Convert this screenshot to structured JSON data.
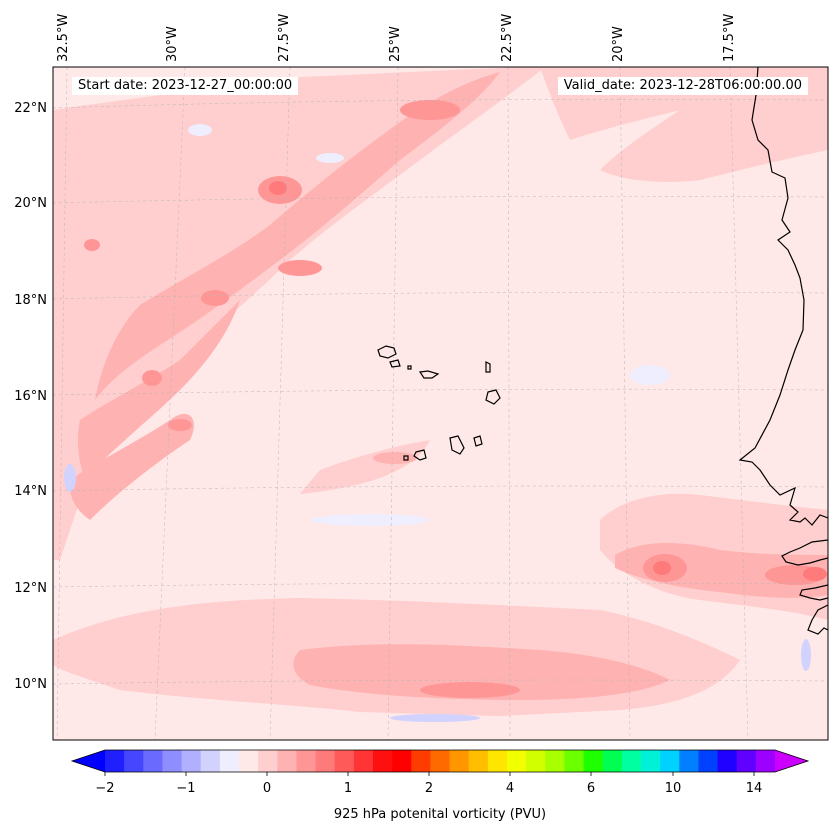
{
  "map": {
    "info_left": "Start date: 2023-12-27_00:00:00",
    "info_right": "Valid_date: 2023-12-28T06:00:00.00",
    "lon_labels": [
      "32.5°W",
      "30°W",
      "27.5°W",
      "25°W",
      "22.5°W",
      "20°W",
      "17.5°W"
    ],
    "lat_labels": [
      "22°N",
      "20°N",
      "18°N",
      "16°N",
      "14°N",
      "12°N",
      "10°N"
    ],
    "extent": {
      "lon_min": -32.8,
      "lon_max": -15.6,
      "lat_min": 9.0,
      "lat_max": 22.8
    },
    "gridlines": true,
    "coastline_color": "#000000"
  },
  "colorbar": {
    "title": "925 hPa potenital vorticity (PVU)",
    "tick_labels": [
      "−2",
      "−1",
      "0",
      "1",
      "2",
      "4",
      "6",
      "10",
      "14"
    ],
    "colors": [
      "#0000ff",
      "#2020ff",
      "#4646ff",
      "#6a6aff",
      "#8e8eff",
      "#b0b0ff",
      "#d2d2ff",
      "#eeeeff",
      "#ffe8e8",
      "#ffcece",
      "#ffb2b2",
      "#ff9696",
      "#ff7a7a",
      "#ff5a5a",
      "#ff3434",
      "#ff1010",
      "#ff0000",
      "#ff3c00",
      "#ff6a00",
      "#ff9600",
      "#ffbe00",
      "#ffe600",
      "#f2ff00",
      "#d2ff00",
      "#a8ff00",
      "#6cff00",
      "#1eff00",
      "#00ff50",
      "#00ffa0",
      "#00f0d8",
      "#00d2ff",
      "#0080ff",
      "#0040ff",
      "#2000ff",
      "#6000ff",
      "#9c00ff",
      "#cc00ff"
    ],
    "extend": "both"
  }
}
